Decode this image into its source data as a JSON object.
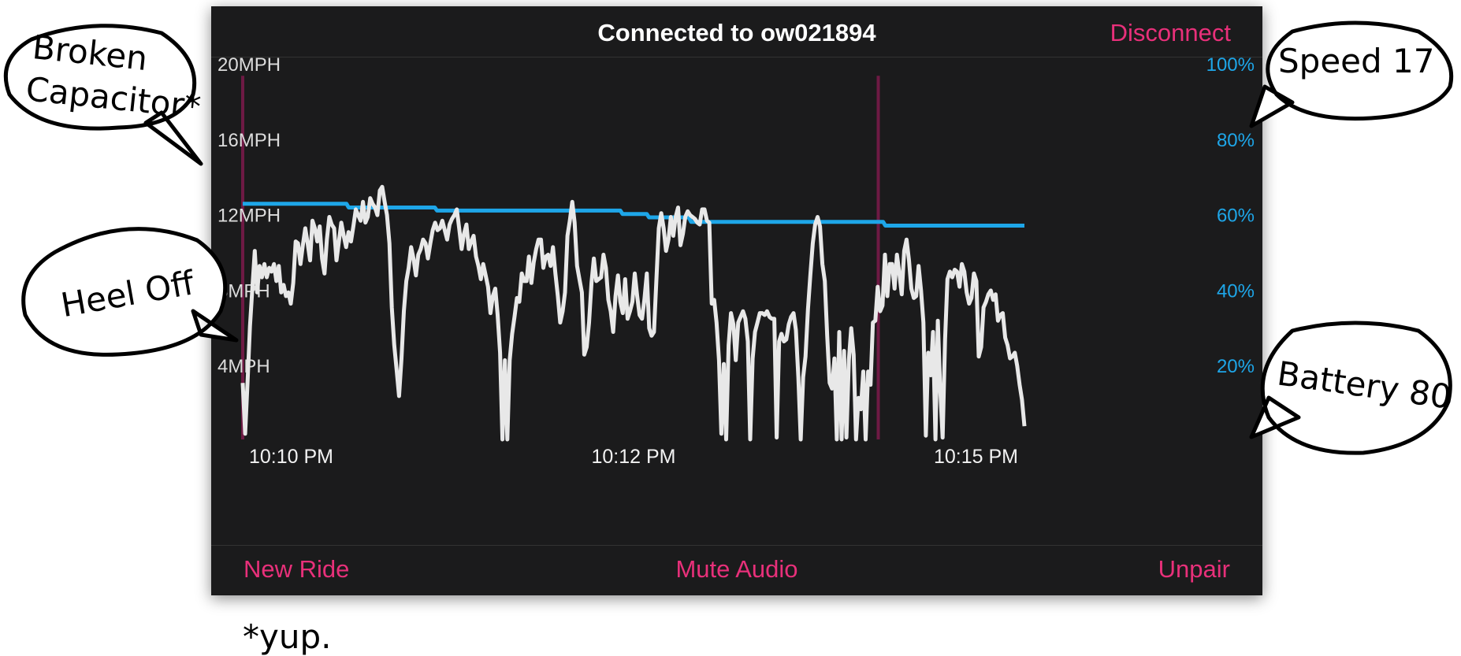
{
  "header": {
    "title": "Connected to ow021894",
    "disconnect_label": "Disconnect"
  },
  "footer": {
    "new_ride_label": "New Ride",
    "mute_label": "Mute Audio",
    "unpair_label": "Unpair"
  },
  "colors": {
    "accent": "#e8307a",
    "battery": "#1ea6e8",
    "speed": "#e8e8e8",
    "event_marker": "#6e1a44",
    "background": "#1b1b1c"
  },
  "bubbles": {
    "broken_capacitor": [
      "Broken",
      "Capacitor*"
    ],
    "heel_off": "Heel Off",
    "speed": "Speed 17",
    "battery": "Battery 80"
  },
  "footnote": "*yup.",
  "chart_data": {
    "type": "line",
    "x_tick_labels": [
      "10:10 PM",
      "10:12 PM",
      "10:15 PM"
    ],
    "y_left": {
      "ticks": [
        4,
        8,
        12,
        16,
        20
      ],
      "tick_labels": [
        "4MPH",
        "8MPH",
        "12MPH",
        "16MPH",
        "20MPH"
      ],
      "range": [
        0,
        20.3
      ]
    },
    "y_right": {
      "ticks": [
        20,
        40,
        60,
        80,
        100
      ],
      "tick_labels": [
        "20%",
        "40%",
        "60%",
        "80%",
        "100%"
      ],
      "range": [
        0,
        101.5
      ]
    },
    "event_markers": [
      0,
      0.813
    ],
    "series": [
      {
        "axis": "left",
        "values": [
          3,
          0.3,
          3,
          6,
          8,
          10,
          7.8,
          9.2,
          8.6,
          9.3,
          8.6,
          9.1,
          8.9,
          9.3,
          8.4,
          9.2,
          7.8,
          8.2,
          7.6,
          7.8,
          7.2,
          8.3,
          10.5,
          10.4,
          9.3,
          10.3,
          11.2,
          10.4,
          9.5,
          11.6,
          11.2,
          10.5,
          11.3,
          9.6,
          8.8,
          10.6,
          11.8,
          11.4,
          11.2,
          9.5,
          10.5,
          11.5,
          10.8,
          10.2,
          11,
          10.5,
          11.3,
          12.2,
          11.9,
          11.6,
          12.6,
          11.5,
          11.8,
          12.8,
          12.5,
          12.3,
          11.9,
          13.2,
          13.4,
          12.6,
          11.9,
          10.4,
          7,
          5,
          3.7,
          2.3,
          4.3,
          6.8,
          8.4,
          9.1,
          10.2,
          9.6,
          8.7,
          9.8,
          10.1,
          10.6,
          10.4,
          9.6,
          10.4,
          11.1,
          11.5,
          11.1,
          11.2,
          11.6,
          11.1,
          10.6,
          11.4,
          11.7,
          11.9,
          12.2,
          11.2,
          10.1,
          10.9,
          11.4,
          10.1,
          10.5,
          10.8,
          9.7,
          9.2,
          8.5,
          9.3,
          8.7,
          8.1,
          6.7,
          7.6,
          8,
          6.6,
          4.6,
          0,
          4.2,
          0,
          4.2,
          5.6,
          6.5,
          7.5,
          7.3,
          8.8,
          8.4,
          8.4,
          9.7,
          8.3,
          9.4,
          10.1,
          10.6,
          10.6,
          9.1,
          9.7,
          9.8,
          9.2,
          10.2,
          8.8,
          7.6,
          6.2,
          6.8,
          7.8,
          10.8,
          11.6,
          12.6,
          11.5,
          9.2,
          8.5,
          7.8,
          4.5,
          4.9,
          6.2,
          8.3,
          9.6,
          8.4,
          8.5,
          8.6,
          9.8,
          9.1,
          7.4,
          6.8,
          5.7,
          7.6,
          8.7,
          7.3,
          6.7,
          8.5,
          6.4,
          6.8,
          7.3,
          8.8,
          7.6,
          6.6,
          6.4,
          7.4,
          8.8,
          5.9,
          5.5,
          5.7,
          8.5,
          11.2,
          12,
          11.2,
          10,
          10.6,
          11.8,
          10.8,
          11.8,
          12.3,
          10.3,
          10.9,
          11.8,
          12.1,
          11.9,
          11.8,
          11.7,
          11.5,
          11.4,
          12.2,
          12.2,
          11.6,
          11.5,
          7.2,
          7.4,
          6.2,
          4.2,
          0.3,
          4,
          0,
          5,
          6.7,
          6.1,
          4.2,
          6.2,
          6.5,
          6.8,
          6.4,
          5.2,
          0,
          4.3,
          5.7,
          6.2,
          6.7,
          6.7,
          6.6,
          6.8,
          6.5,
          6.4,
          6.4,
          0.1,
          5.2,
          5.6,
          5.2,
          5.3,
          6.1,
          6.5,
          6.7,
          5.8,
          3.3,
          0,
          3.3,
          4.4,
          6.9,
          8.7,
          10.4,
          11.4,
          11.8,
          11.3,
          9.3,
          8.4,
          5.5,
          3,
          2.7,
          4.3,
          0,
          5.7,
          0,
          4.7,
          0.1,
          4.2,
          5.9,
          4.5,
          0,
          2.2,
          1.6,
          3.6,
          0,
          3.6,
          2.9,
          6.2,
          6.3,
          8.1,
          6.8,
          7.1,
          9.8,
          7.6,
          9.3,
          9.3,
          8,
          9.8,
          8.8,
          7.7,
          10,
          10.6,
          9.5,
          8,
          7.5,
          7.6,
          9.2,
          7.9,
          6.2,
          0.2,
          4.6,
          3.4,
          5.7,
          0,
          6.3,
          2.6,
          0.1,
          5.3,
          8.5,
          8.9,
          8.6,
          9,
          8.9,
          8.1,
          9.3,
          8.9,
          7.8,
          7.2,
          7.5,
          8.8,
          8.4,
          4.4,
          4.9,
          7,
          7.3,
          7.7,
          7.9,
          7.4,
          7.7,
          6.3,
          6.6,
          6.7,
          5.4,
          5,
          4.3,
          4.4,
          4.6,
          3.9,
          2.9,
          2.1,
          0.7
        ],
        "color": "#e8e8e8"
      },
      {
        "axis": "right",
        "values": [
          62.5,
          62.5,
          62.5,
          62.5,
          62.5,
          62.5,
          62.5,
          62.5,
          62.5,
          62.5,
          62.5,
          62.5,
          62.5,
          62.5,
          62.5,
          62.5,
          62.5,
          62.5,
          62.5,
          62.5,
          62.5,
          62.5,
          62.5,
          62.5,
          62.5,
          62.5,
          62.5,
          62.5,
          62.5,
          62.5,
          62.5,
          62.5,
          62.5,
          62.5,
          62.5,
          62.5,
          62.5,
          62.5,
          62.5,
          62.5,
          62.5,
          62.5,
          62.5,
          62.5,
          62.5,
          62.5,
          62.5,
          62.5,
          61.5,
          61.5,
          61.5,
          61.5,
          61.5,
          61.5,
          61.5,
          61.5,
          61.5,
          61.5,
          61.5,
          61.5,
          61.5,
          61.5,
          61.5,
          61.5,
          61.5,
          61.5,
          61.5,
          61.5,
          61.5,
          61.5,
          61.5,
          61.5,
          61.5,
          61.5,
          61.5,
          61.5,
          61.5,
          61.5,
          61.5,
          61.5,
          61.5,
          61.5,
          61.5,
          61.5,
          61.5,
          61.5,
          61.5,
          61.5,
          60.7,
          60.7,
          60.7,
          60.7,
          60.7,
          60.7,
          60.7,
          60.7,
          60.7,
          60.7,
          60.7,
          60.7,
          60.7,
          60.7,
          60.7,
          60.7,
          60.7,
          60.7,
          60.7,
          60.7,
          60.7,
          60.7,
          60.7,
          60.7,
          60.7,
          60.7,
          60.7,
          60.7,
          60.7,
          60.7,
          60.7,
          60.7,
          60.7,
          60.7,
          60.7,
          60.7,
          60.7,
          60.7,
          60.7,
          60.7,
          60.7,
          60.7,
          60.7,
          60.7,
          60.7,
          60.7,
          60.7,
          60.7,
          60.7,
          60.7,
          60.7,
          60.7,
          60.7,
          60.7,
          60.7,
          60.7,
          60.7,
          60.7,
          60.7,
          60.7,
          60.7,
          60.7,
          60.7,
          60.7,
          60.7,
          60.7,
          60.7,
          60.7,
          60.7,
          60.7,
          60.7,
          60.7,
          60.7,
          60.7,
          60.7,
          60.7,
          60.7,
          60.7,
          60.7,
          60.7,
          60.7,
          60.7,
          60.7,
          60.7,
          59.8,
          59.8,
          59.8,
          59.8,
          59.8,
          59.8,
          59.8,
          59.8,
          59.8,
          59.8,
          59.8,
          59.8,
          58.9,
          58.9,
          58.9,
          58.9,
          58.9,
          58.9,
          58.9,
          58.9,
          58.9,
          58.9,
          58.9,
          58.9,
          58.9,
          58.9,
          58.9,
          58.9,
          58.9,
          58.9,
          58.9,
          57.7,
          57.7,
          57.7,
          57.7,
          57.7,
          57.7,
          57.7,
          57.7,
          57.7,
          57.7,
          57.7,
          57.7,
          57.7,
          57.7,
          57.7,
          57.7,
          57.7,
          57.7,
          57.7,
          57.7,
          57.7,
          57.7,
          57.7,
          57.7,
          57.7,
          57.7,
          57.7,
          57.7,
          57.7,
          57.7,
          57.7,
          57.7,
          57.7,
          57.7,
          57.7,
          57.7,
          57.7,
          57.7,
          57.7,
          57.7,
          57.7,
          57.7,
          57.7,
          57.7,
          57.7,
          57.7,
          57.7,
          57.7,
          57.7,
          57.7,
          57.7,
          57.7,
          57.7,
          57.7,
          57.7,
          57.7,
          57.7,
          57.7,
          57.7,
          57.7,
          57.7,
          57.7,
          57.7,
          57.7,
          57.7,
          57.7,
          57.7,
          57.7,
          57.7,
          57.7,
          57.7,
          57.7,
          57.7,
          57.7,
          57.7,
          57.7,
          57.7,
          57.7,
          57.7,
          57.7,
          57.7,
          57.7,
          57.7,
          57.7,
          57.7,
          57.7,
          57.7,
          57.7,
          56.7,
          56.7,
          56.7,
          56.7,
          56.7,
          56.7,
          56.7,
          56.7,
          56.7,
          56.7,
          56.7,
          56.7,
          56.7,
          56.7,
          56.7,
          56.7,
          56.7,
          56.7,
          56.7,
          56.7,
          56.7,
          56.7,
          56.7,
          56.7,
          56.7,
          56.7,
          56.7,
          56.7,
          56.7,
          56.7,
          56.7,
          56.7,
          56.7,
          56.7,
          56.7,
          56.7,
          56.7,
          56.7,
          56.7,
          56.7,
          56.7,
          56.7,
          56.7,
          56.7,
          56.7,
          56.7,
          56.7,
          56.7,
          56.7,
          56.7,
          56.7,
          56.7,
          56.7,
          56.7,
          56.7,
          56.7,
          56.7,
          56.7,
          56.7,
          56.7,
          56.7,
          56.7,
          56.7,
          56.7
        ],
        "color": "#1ea6e8"
      }
    ]
  }
}
